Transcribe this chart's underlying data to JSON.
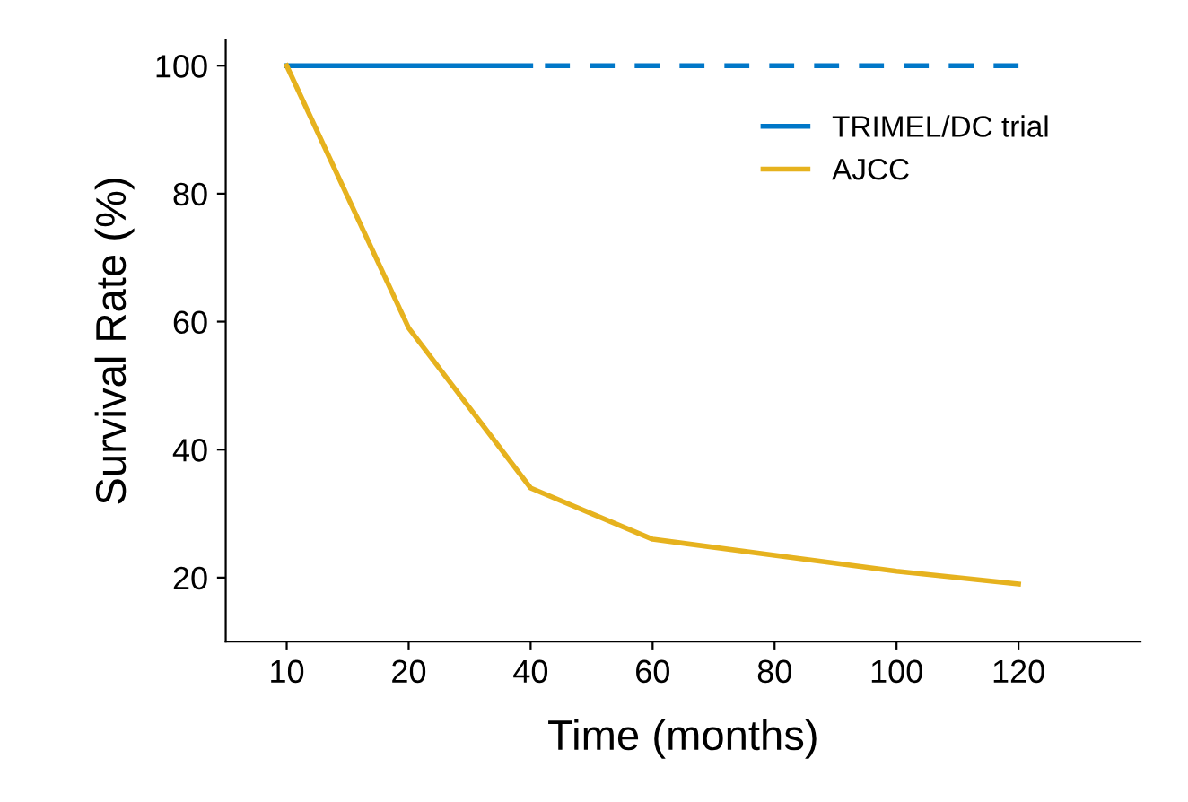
{
  "chart_data": {
    "type": "line",
    "xlabel": "Time (months)",
    "ylabel": "Survival Rate (%)",
    "categories": [
      "10",
      "20",
      "40",
      "60",
      "80",
      "100",
      "120"
    ],
    "ylim": [
      10,
      104
    ],
    "yticks": [
      20,
      40,
      60,
      80,
      100
    ],
    "grid": false,
    "legend": "top right",
    "marker": "none",
    "series": [
      {
        "name": "TRIMEL/DC trial",
        "color": "#0077c8",
        "line_style": "solid",
        "values": [
          100,
          100,
          100,
          null,
          null,
          null,
          null
        ]
      },
      {
        "color": "#0077c8",
        "line_style": "dashed",
        "values": [
          null,
          null,
          100,
          100,
          100,
          100,
          100
        ]
      },
      {
        "name": "AJCC",
        "color": "#e6b21e",
        "line_style": "solid",
        "values": [
          100,
          59,
          34,
          26,
          23.5,
          21,
          19
        ]
      }
    ]
  }
}
